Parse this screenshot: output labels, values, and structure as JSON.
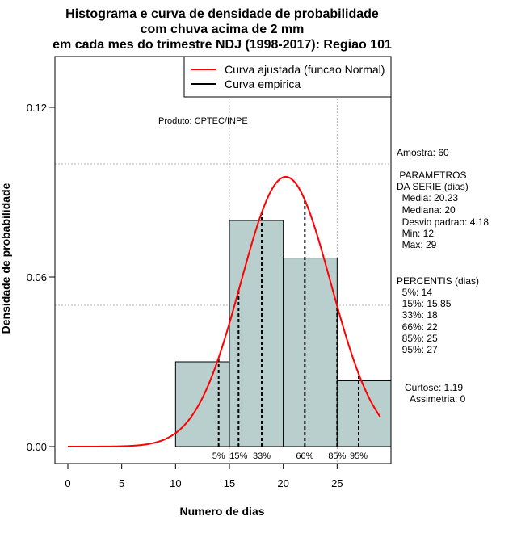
{
  "chart_data": {
    "type": "histogram",
    "title_lines": [
      "Histograma e curva de densidade de probabilidade",
      "com chuva acima de 2 mm",
      "em cada mes do trimestre NDJ (1998-2017): Regiao 101"
    ],
    "xlabel": "Numero de dias",
    "ylabel": "Densidade de probabilidade",
    "xlim": [
      -1.2,
      30
    ],
    "ylim": [
      -0.006,
      0.138
    ],
    "x_ticks": [
      0,
      5,
      10,
      15,
      20,
      25
    ],
    "y_ticks": [
      0.0,
      0.06,
      0.12
    ],
    "y_tick_labels": [
      "0.00",
      "0.06",
      "0.12"
    ],
    "grid_x": [
      15,
      25
    ],
    "grid_y": [
      0.05,
      0.1
    ],
    "bars": [
      {
        "x0": 10,
        "x1": 15,
        "density": 0.03
      },
      {
        "x0": 15,
        "x1": 20,
        "density": 0.08
      },
      {
        "x0": 20,
        "x1": 25,
        "density": 0.0667
      },
      {
        "x0": 25,
        "x1": 30,
        "density": 0.0233
      }
    ],
    "normal_curve": {
      "mean": 20.23,
      "sd": 4.18,
      "x_from": 0,
      "x_to": 29
    },
    "percentile_lines": [
      {
        "x": 14,
        "label": "5%"
      },
      {
        "x": 15.85,
        "label": "15%"
      },
      {
        "x": 18,
        "label": "33%"
      },
      {
        "x": 22,
        "label": "66%"
      },
      {
        "x": 25,
        "label": "85%"
      },
      {
        "x": 27,
        "label": "95%"
      }
    ],
    "legend": {
      "position": "top-right",
      "entries": [
        {
          "label": "Curva ajustada (funcao Normal)",
          "color": "#ff0000"
        },
        {
          "label": "Curva empirica",
          "color": "#000000"
        }
      ]
    },
    "annotation": "Produto: CPTEC/INPE",
    "colors": {
      "bar_fill": "#b8cfcd",
      "bar_stroke": "#000000",
      "curve": "#ff0000",
      "grid": "#b4b4b4"
    }
  },
  "side_panel": {
    "lines": [
      "Amostra: 60",
      " PARAMETROS",
      "DA SERIE (dias)",
      "  Media: 20.23",
      "  Mediana: 20",
      "  Desvio padrao: 4.18",
      "  Min: 12",
      "  Max: 29",
      "PERCENTIS (dias)",
      "  5%: 14",
      "  15%: 15.85",
      "  33%: 18",
      "  66%: 22",
      "  85%: 25",
      "  95%: 27",
      "Curtose: 1.19",
      "  Assimetria: 0"
    ]
  }
}
